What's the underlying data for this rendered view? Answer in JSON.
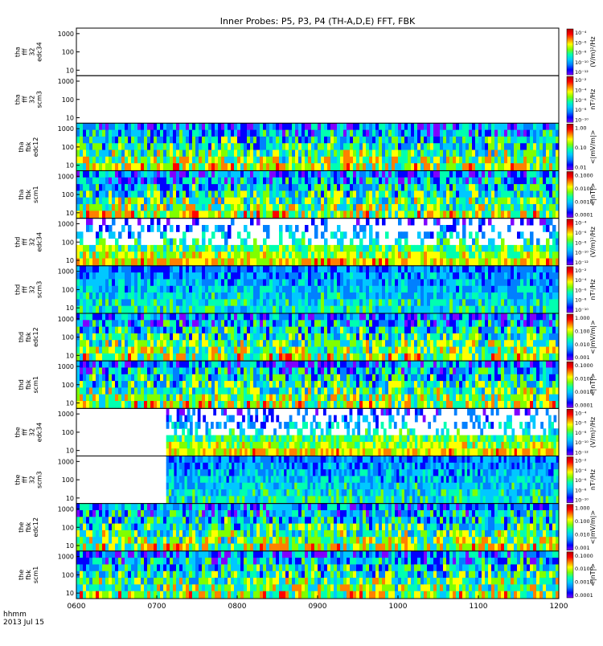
{
  "chart_data": {
    "type": "heatmap",
    "title": "Inner Probes: P5, P3, P4 (TH-A,D,E) FFT, FBK",
    "x": {
      "ticks": [
        "0600",
        "0700",
        "0800",
        "0900",
        "1000",
        "1100",
        "1200"
      ],
      "range_hours": [
        6,
        12
      ],
      "unit_label": "hhmm",
      "date_label": "2013 Jul 15"
    },
    "y": {
      "scale": "log",
      "tick_values": [
        10,
        100,
        1000
      ],
      "tick_labels": [
        "10",
        "100",
        "1000"
      ]
    },
    "panels": [
      {
        "ylabel": [
          "tha",
          "fff",
          "32",
          "edc34"
        ],
        "zlabel": "(V/m)²/Hz",
        "cbar_ticks": [
          "10⁻⁴",
          "10⁻⁶",
          "10⁻⁸",
          "10⁻¹⁰",
          "10⁻¹²"
        ],
        "coverage": "empty"
      },
      {
        "ylabel": [
          "tha",
          "fff",
          "32",
          "scm3"
        ],
        "zlabel": "nT²/Hz",
        "cbar_ticks": [
          "10⁻²",
          "10⁻⁴",
          "10⁻⁶",
          "10⁻⁸",
          "10⁻¹⁰"
        ],
        "coverage": "empty"
      },
      {
        "ylabel": [
          "tha",
          "fbk",
          "edc12"
        ],
        "zlabel": "<|mV/m|>",
        "cbar_ticks": [
          "1.00",
          "0.10",
          "0.01"
        ],
        "coverage": "full"
      },
      {
        "ylabel": [
          "tha",
          "fbk",
          "scm1"
        ],
        "zlabel": "<|nT|>",
        "cbar_ticks": [
          "0.1000",
          "0.0100",
          "0.0010",
          "0.0001"
        ],
        "coverage": "full"
      },
      {
        "ylabel": [
          "thd",
          "fff",
          "32",
          "edc34"
        ],
        "zlabel": "(V/m)²/Hz",
        "cbar_ticks": [
          "10⁻⁴",
          "10⁻⁶",
          "10⁻⁸",
          "10⁻¹⁰",
          "10⁻¹²"
        ],
        "coverage": "full"
      },
      {
        "ylabel": [
          "thd",
          "fff",
          "32",
          "scm3"
        ],
        "zlabel": "nT²/Hz",
        "cbar_ticks": [
          "10⁻²",
          "10⁻⁴",
          "10⁻⁶",
          "10⁻⁸",
          "10⁻¹⁰"
        ],
        "coverage": "full"
      },
      {
        "ylabel": [
          "thd",
          "fbk",
          "edc12"
        ],
        "zlabel": "<|mV/m|>",
        "cbar_ticks": [
          "1.000",
          "0.100",
          "0.010",
          "0.001"
        ],
        "coverage": "full"
      },
      {
        "ylabel": [
          "thd",
          "fbk",
          "scm1"
        ],
        "zlabel": "<|nT|>",
        "cbar_ticks": [
          "0.1000",
          "0.0100",
          "0.0010",
          "0.0001"
        ],
        "coverage": "full"
      },
      {
        "ylabel": [
          "the",
          "fff",
          "32",
          "edc34"
        ],
        "zlabel": "(V/m)²/Hz",
        "cbar_ticks": [
          "10⁻⁴",
          "10⁻⁶",
          "10⁻⁸",
          "10⁻¹⁰",
          "10⁻¹²"
        ],
        "coverage": "from_0707"
      },
      {
        "ylabel": [
          "the",
          "fff",
          "32",
          "scm3"
        ],
        "zlabel": "nT²/Hz",
        "cbar_ticks": [
          "10⁻²",
          "10⁻⁴",
          "10⁻⁶",
          "10⁻⁸",
          "10⁻¹⁰"
        ],
        "coverage": "from_0707"
      },
      {
        "ylabel": [
          "the",
          "fbk",
          "edc12"
        ],
        "zlabel": "<|mV/m|>",
        "cbar_ticks": [
          "1.000",
          "0.100",
          "0.010",
          "0.001"
        ],
        "coverage": "full"
      },
      {
        "ylabel": [
          "the",
          "fbk",
          "scm1"
        ],
        "zlabel": "<|nT|>",
        "cbar_ticks": [
          "0.1000",
          "0.0100",
          "0.0010",
          "0.0001"
        ],
        "coverage": "full"
      }
    ],
    "colorscale": [
      "#7f00ff",
      "#0000ff",
      "#0080ff",
      "#00c8ff",
      "#00ffb0",
      "#7fff00",
      "#ffff00",
      "#ff8000",
      "#ff0000",
      "#b00000"
    ]
  }
}
